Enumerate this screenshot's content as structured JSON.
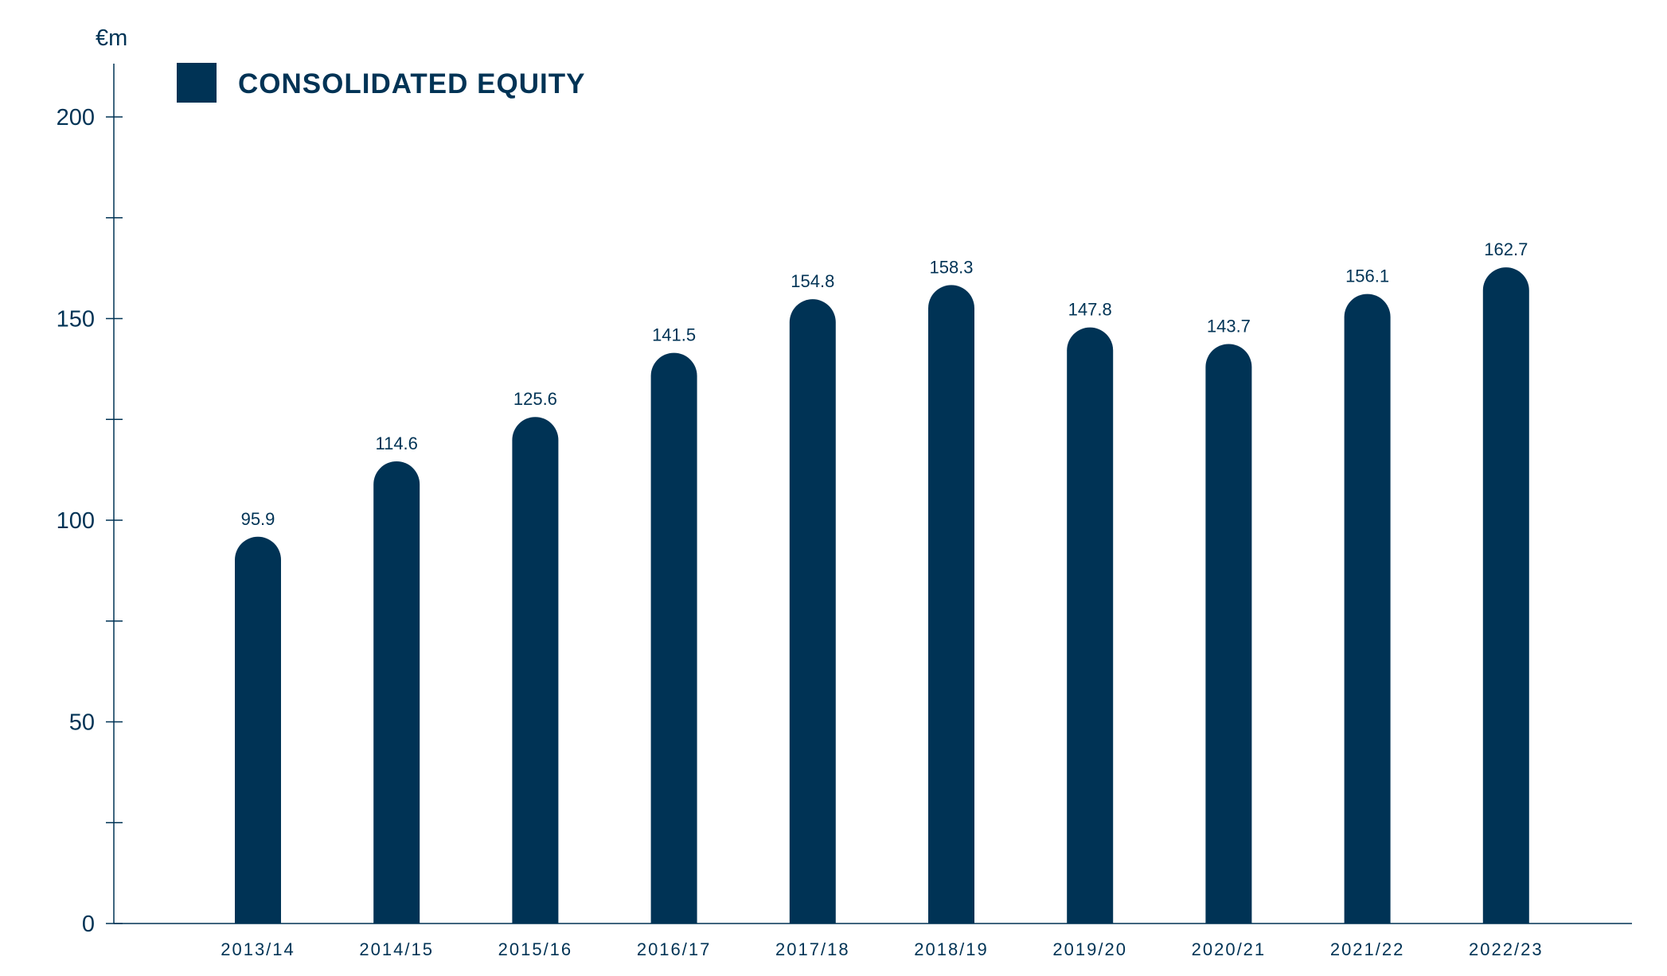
{
  "chart_data": {
    "type": "bar",
    "ylabel": "€m",
    "ylim": [
      0,
      200
    ],
    "y_ticks": [
      0,
      50,
      100,
      150,
      200
    ],
    "categories": [
      "2013/14",
      "2014/15",
      "2015/16",
      "2016/17",
      "2017/18",
      "2018/19",
      "2019/20",
      "2020/21",
      "2021/22",
      "2022/23"
    ],
    "series": [
      {
        "name": "CONSOLIDATED EQUITY",
        "values": [
          95.9,
          114.6,
          125.6,
          141.5,
          154.8,
          158.3,
          147.8,
          143.7,
          156.1,
          162.7
        ],
        "value_labels": [
          "95.9",
          "114.6",
          "125.6",
          "141.5",
          "154.8",
          "158.3",
          "147.8",
          "143.7",
          "156.1",
          "162.7"
        ],
        "color": "#003355"
      }
    ],
    "legend_position": "top-left",
    "grid": false
  },
  "colors": {
    "axis": "#003355",
    "bar": "#003355"
  }
}
